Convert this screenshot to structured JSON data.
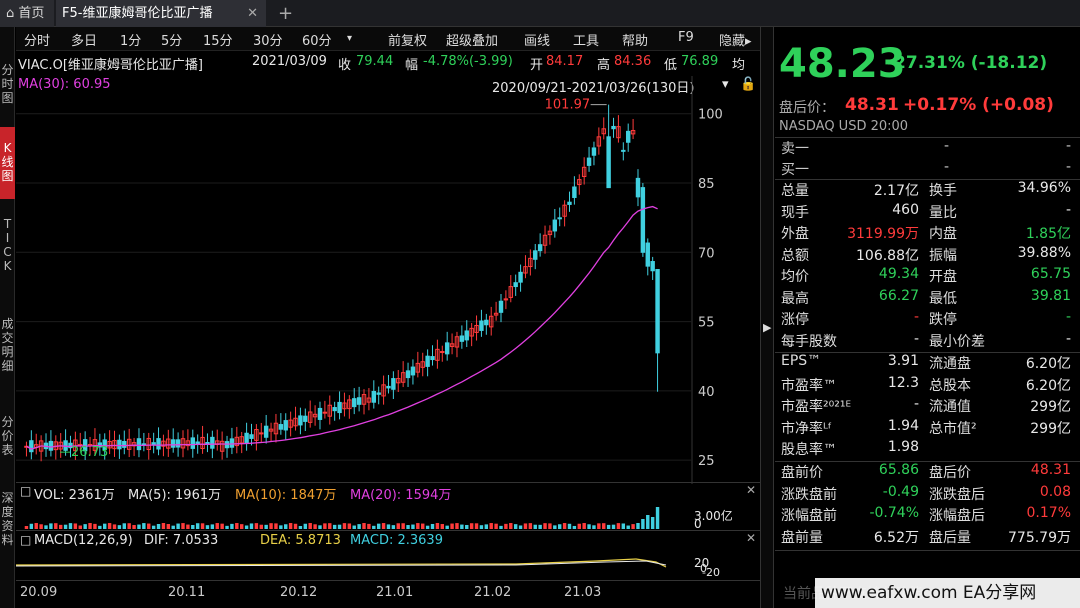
{
  "tabs": {
    "home": "首页",
    "stock": "F5-维亚康姆哥伦比亚广播",
    "close": "✕",
    "add": "+"
  },
  "leftbar": [
    "分\n时\n图",
    "K\n线\n图",
    "T\nI\nC\nK",
    "成\n交\n明\n细",
    "分\n价\n表",
    "深\n度\n资\n料"
  ],
  "toolbar": [
    "分时",
    "多日",
    "1分",
    "5分",
    "15分",
    "30分",
    "60分",
    "▾",
    "前复权",
    "超级叠加",
    "画线",
    "工具",
    "帮助",
    "F9",
    "隐藏▸"
  ],
  "info": {
    "name": "VIAC.O[维亚康姆哥伦比亚广播]",
    "date": "2021/03/09",
    "close_label": "收",
    "close": "79.44",
    "chg_label": "幅",
    "chg": "-4.78%(-3.99)",
    "open_label": "开",
    "open": "84.17",
    "high_label": "高",
    "high": "84.36",
    "low_label": "低",
    "low": "76.89",
    "avg_label": "均"
  },
  "ma": {
    "label": "MA(30): 60.95",
    "range": "2020/09/21-2021/03/26(130日)"
  },
  "chart_data": {
    "type": "candlestick",
    "y_ticks": [
      100,
      85,
      70,
      55,
      40,
      25
    ],
    "ylim": [
      22,
      106
    ],
    "max_label": "101.97",
    "min_label": "26.73"
  },
  "vol": {
    "vol": "VOL: 2361万",
    "ma5": "MA(5): 1961万",
    "ma10": "MA(10): 1847万",
    "ma20": "MA(20): 1594万",
    "axis": "3.00亿",
    "axis2": "0"
  },
  "macd": {
    "title": "MACD(12,26,9)",
    "dif": "DIF: 7.0533",
    "dea": "DEA: 5.8713",
    "macd": "MACD: 2.3639",
    "axis1": "20",
    "axis2": "0",
    "axis3": "-20"
  },
  "xaxis": [
    "20.09",
    "20.11",
    "20.12",
    "21.01",
    "21.02",
    "21.03"
  ],
  "quote": {
    "price": "48.23",
    "chg": "-27.31% (-18.12)",
    "after_label": "盘后价：",
    "after_price": "48.31",
    "after_chg": "+0.17% (+0.08)",
    "exchange": "NASDAQ  USD  20:00"
  },
  "book": [
    {
      "k": "卖一",
      "a": "-",
      "b": "-"
    },
    {
      "k": "买一",
      "a": "-",
      "b": "-"
    }
  ],
  "stats": [
    [
      "总量",
      "2.17亿",
      "换手",
      "34.96%"
    ],
    [
      "现手",
      "460",
      "量比",
      "-"
    ],
    [
      "外盘",
      "3119.99万",
      "内盘",
      "1.85亿"
    ],
    [
      "总额",
      "106.88亿",
      "振幅",
      "39.88%"
    ],
    [
      "均价",
      "49.34",
      "开盘",
      "65.75"
    ],
    [
      "最高",
      "66.27",
      "最低",
      "39.81"
    ],
    [
      "涨停",
      "-",
      "跌停",
      "-"
    ],
    [
      "每手股数",
      "-",
      "最小价差",
      "-"
    ]
  ],
  "fund": [
    [
      "EPS™",
      "3.91",
      "流通盘",
      "6.20亿"
    ],
    [
      "市盈率™",
      "12.3",
      "总股本",
      "6.20亿"
    ],
    [
      "市盈率²⁰²¹ᴱ",
      "-",
      "流通值",
      "299亿"
    ],
    [
      "市净率ᴸᶠ",
      "1.94",
      "总市值²",
      "299亿"
    ],
    [
      "股息率™",
      "1.98",
      "",
      ""
    ]
  ],
  "ext": [
    [
      "盘前价",
      "65.86",
      "盘后价",
      "48.31"
    ],
    [
      "涨跌盘前",
      "-0.49",
      "涨跌盘后",
      "0.08"
    ],
    [
      "涨幅盘前",
      "-0.74%",
      "涨幅盘后",
      "0.17%"
    ],
    [
      "盘前量",
      "6.52万",
      "盘后量",
      "775.79万"
    ]
  ],
  "footer": "当前品种不支持此功能",
  "watermark": "www.eafxw.com  EA分享网",
  "colors": {
    "up": "#ff3b3b",
    "down": "#2fd15a",
    "ma": "#e040e0"
  }
}
